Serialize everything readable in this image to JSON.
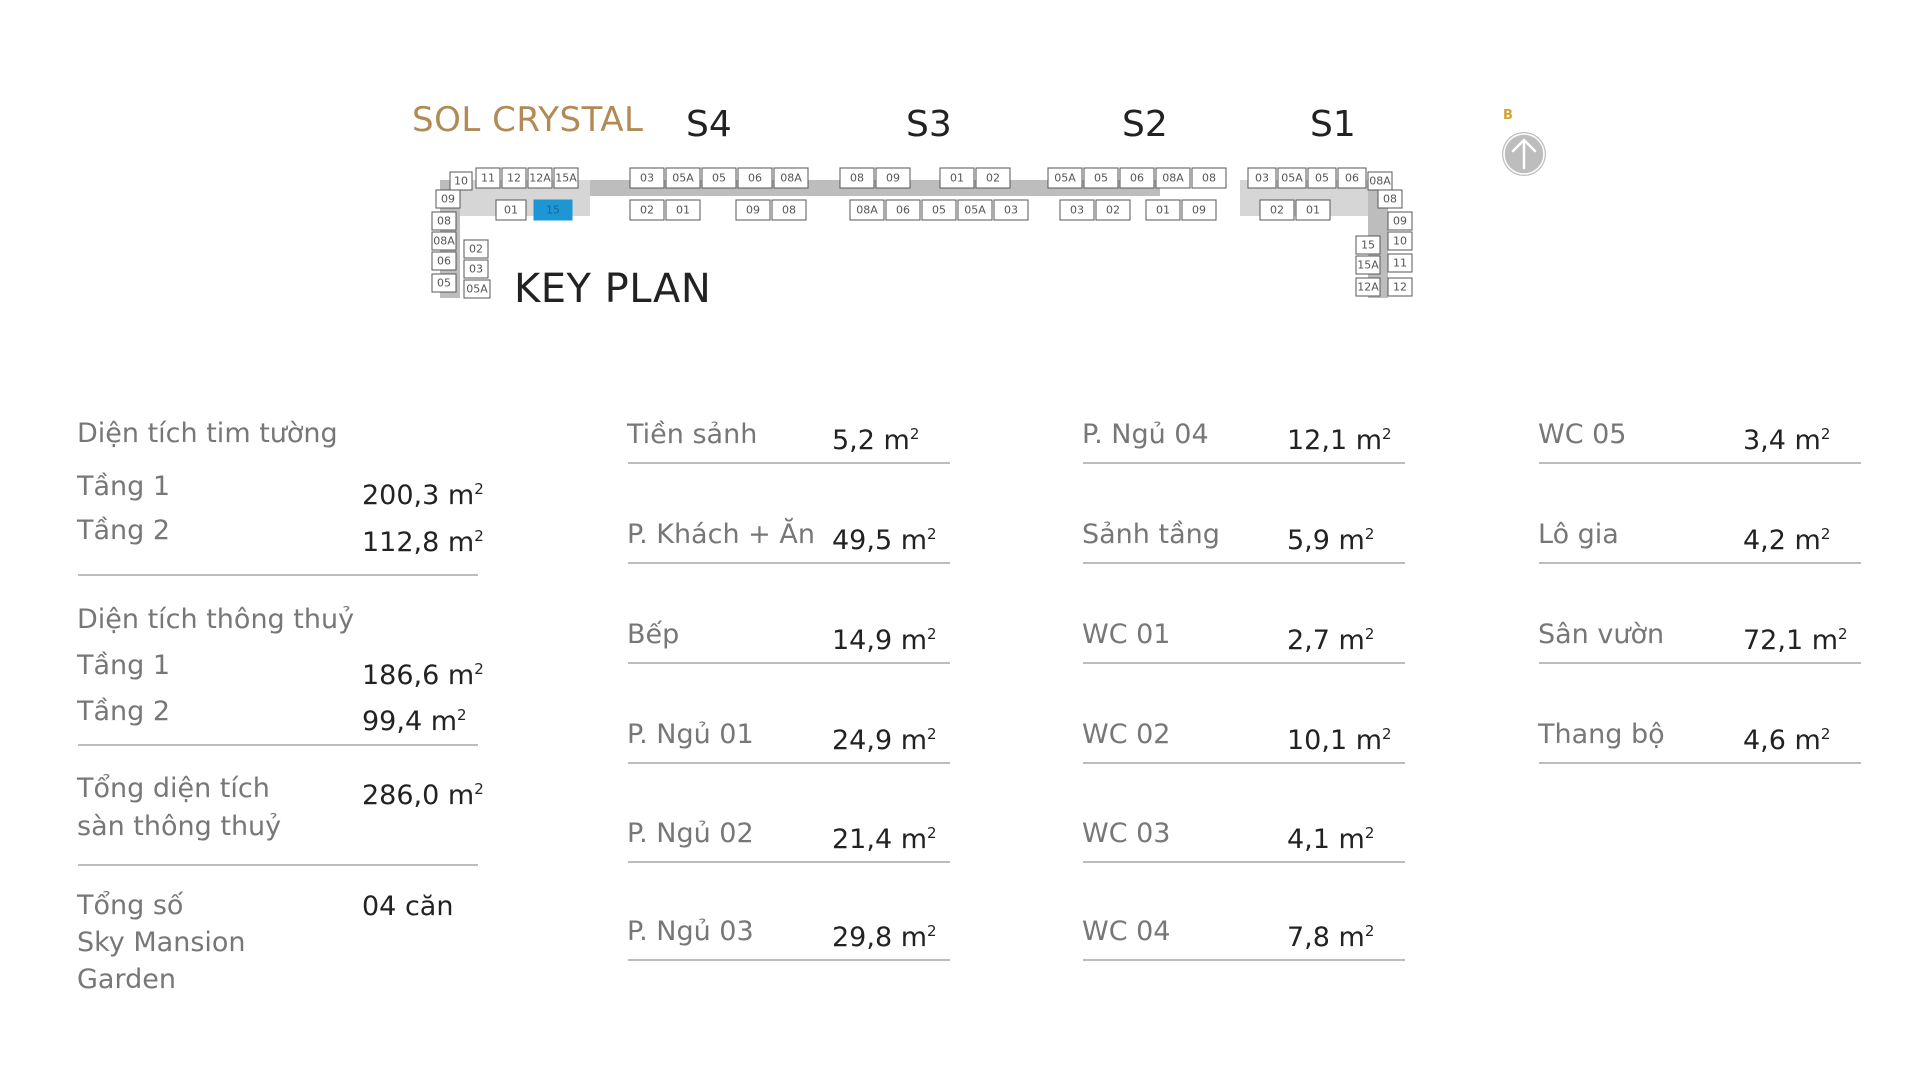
{
  "brand": "SOL CRYSTAL",
  "keyplan_title": "KEY PLAN",
  "compass_label": "B",
  "sections": [
    "S4",
    "S3",
    "S2",
    "S1"
  ],
  "colors": {
    "brand": "#b28a55",
    "highlight": "#1e96d6",
    "compass": "#d4a234"
  },
  "plan_units": {
    "left_wing": [
      "10",
      "09",
      "11",
      "12",
      "12A",
      "15A",
      "08",
      "08A",
      "06",
      "05",
      "02",
      "03",
      "05A"
    ],
    "s4_top": [
      "03",
      "05A",
      "05",
      "06",
      "08A"
    ],
    "s4_bottom": [
      "01",
      "15",
      "02",
      "01",
      "09",
      "08"
    ],
    "s3_top": [
      "08",
      "09",
      "01",
      "02"
    ],
    "s3_bottom": [
      "08A",
      "06",
      "05",
      "05A",
      "03"
    ],
    "s2_top": [
      "05A",
      "05",
      "06",
      "08A",
      "08"
    ],
    "s2_bottom": [
      "03",
      "02",
      "01",
      "09"
    ],
    "s1_top": [
      "03",
      "05A",
      "05",
      "06"
    ],
    "s1_bottom": [
      "02",
      "01"
    ],
    "right_wing": [
      "08A",
      "08",
      "09",
      "10",
      "15",
      "15A",
      "11",
      "12A",
      "12"
    ],
    "highlighted_unit": "15"
  },
  "wall_area": {
    "title": "Diện tích tim tường",
    "rows": [
      {
        "label": "Tầng 1",
        "value": "200,3 m",
        "sup": "2"
      },
      {
        "label": "Tầng 2",
        "value": "112,8 m",
        "sup": "2"
      }
    ]
  },
  "clear_area": {
    "title": "Diện tích thông thuỷ",
    "rows": [
      {
        "label": "Tầng 1",
        "value": "186,6 m",
        "sup": "2"
      },
      {
        "label": "Tầng 2",
        "value": "99,4 m",
        "sup": "2"
      }
    ]
  },
  "total_area": {
    "label_line1": "Tổng diện tích",
    "label_line2": "sàn thông thuỷ",
    "value": "286,0 m",
    "sup": "2"
  },
  "total_units": {
    "label_line1": "Tổng số",
    "label_line2": "Sky Mansion",
    "label_line3": "Garden",
    "value": "04 căn"
  },
  "rooms_col1": [
    {
      "label": "Tiền sảnh",
      "value": "5,2 m",
      "sup": "2"
    },
    {
      "label": "P. Khách + Ăn",
      "value": "49,5 m",
      "sup": "2"
    },
    {
      "label": "Bếp",
      "value": "14,9 m",
      "sup": "2"
    },
    {
      "label": "P. Ngủ 01",
      "value": "24,9 m",
      "sup": "2"
    },
    {
      "label": "P. Ngủ 02",
      "value": "21,4 m",
      "sup": "2"
    },
    {
      "label": "P. Ngủ 03",
      "value": "29,8 m",
      "sup": "2"
    }
  ],
  "rooms_col2": [
    {
      "label": "P. Ngủ 04",
      "value": "12,1 m",
      "sup": "2"
    },
    {
      "label": "Sảnh tầng",
      "value": "5,9 m",
      "sup": "2"
    },
    {
      "label": "WC 01",
      "value": "2,7 m",
      "sup": "2"
    },
    {
      "label": "WC 02",
      "value": "10,1 m",
      "sup": "2"
    },
    {
      "label": "WC 03",
      "value": "4,1 m",
      "sup": "2"
    },
    {
      "label": "WC 04",
      "value": "7,8 m",
      "sup": "2"
    }
  ],
  "rooms_col3": [
    {
      "label": "WC 05",
      "value": "3,4 m",
      "sup": "2"
    },
    {
      "label": "Lô gia",
      "value": "4,2 m",
      "sup": "2"
    },
    {
      "label": "Sân vườn",
      "value": "72,1 m",
      "sup": "2"
    },
    {
      "label": "Thang bộ",
      "value": "4,6 m",
      "sup": "2"
    }
  ]
}
